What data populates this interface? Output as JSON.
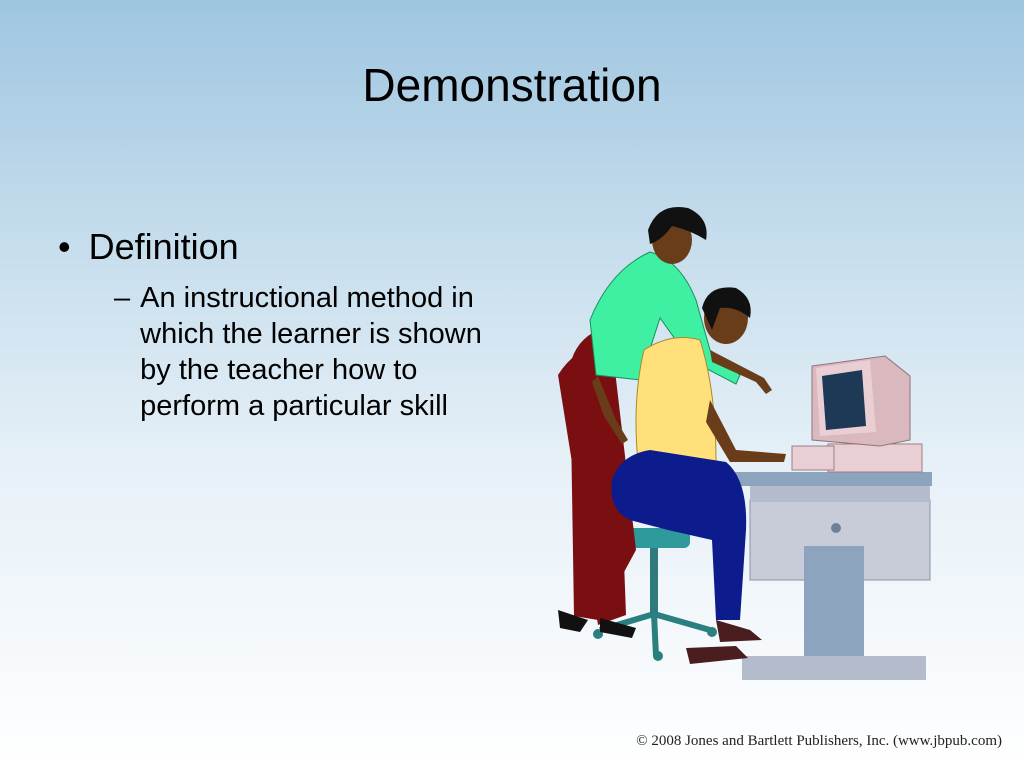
{
  "slide": {
    "title": "Demonstration",
    "bullets": [
      {
        "marker": "•",
        "text": "Definition",
        "sub": [
          {
            "marker": "–",
            "text": "An instructional method in which the learner is shown by the teacher how to perform a particular skill"
          }
        ]
      }
    ],
    "illustration_icon": "teacher-student-computer-illustration",
    "copyright": "© 2008 Jones and Bartlett Publishers, Inc. (www.jbpub.com)"
  }
}
